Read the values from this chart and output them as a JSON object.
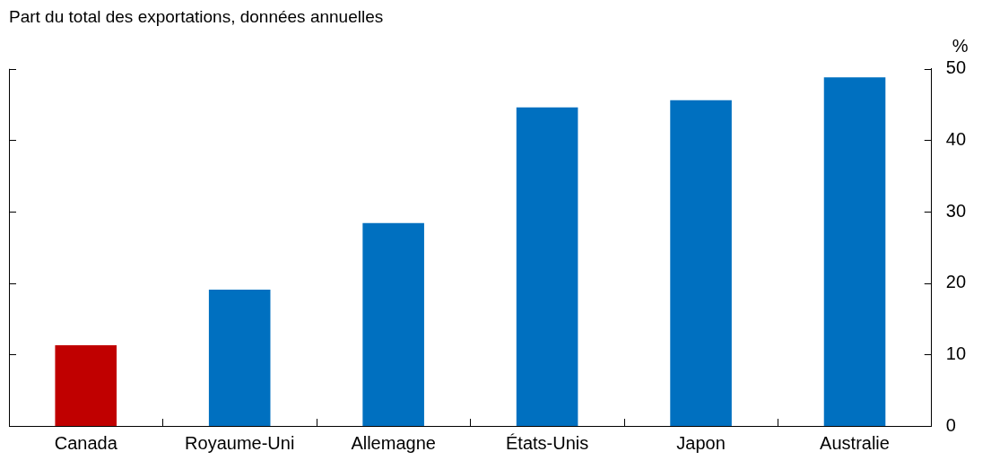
{
  "chart_data": {
    "type": "bar",
    "title": "Part du total des exportations, données annuelles",
    "ylabel": "%",
    "categories": [
      "Canada",
      "Royaume-Uni",
      "Allemagne",
      "États-Unis",
      "Japon",
      "Australie"
    ],
    "values": [
      11.3,
      19.1,
      28.4,
      44.6,
      45.6,
      48.8
    ],
    "colors": [
      "#c00000",
      "#0070c0",
      "#0070c0",
      "#0070c0",
      "#0070c0",
      "#0070c0"
    ],
    "ylim": [
      0,
      50
    ],
    "yticks": [
      0,
      10,
      20,
      30,
      40,
      50
    ],
    "grid": false,
    "legend": false
  }
}
